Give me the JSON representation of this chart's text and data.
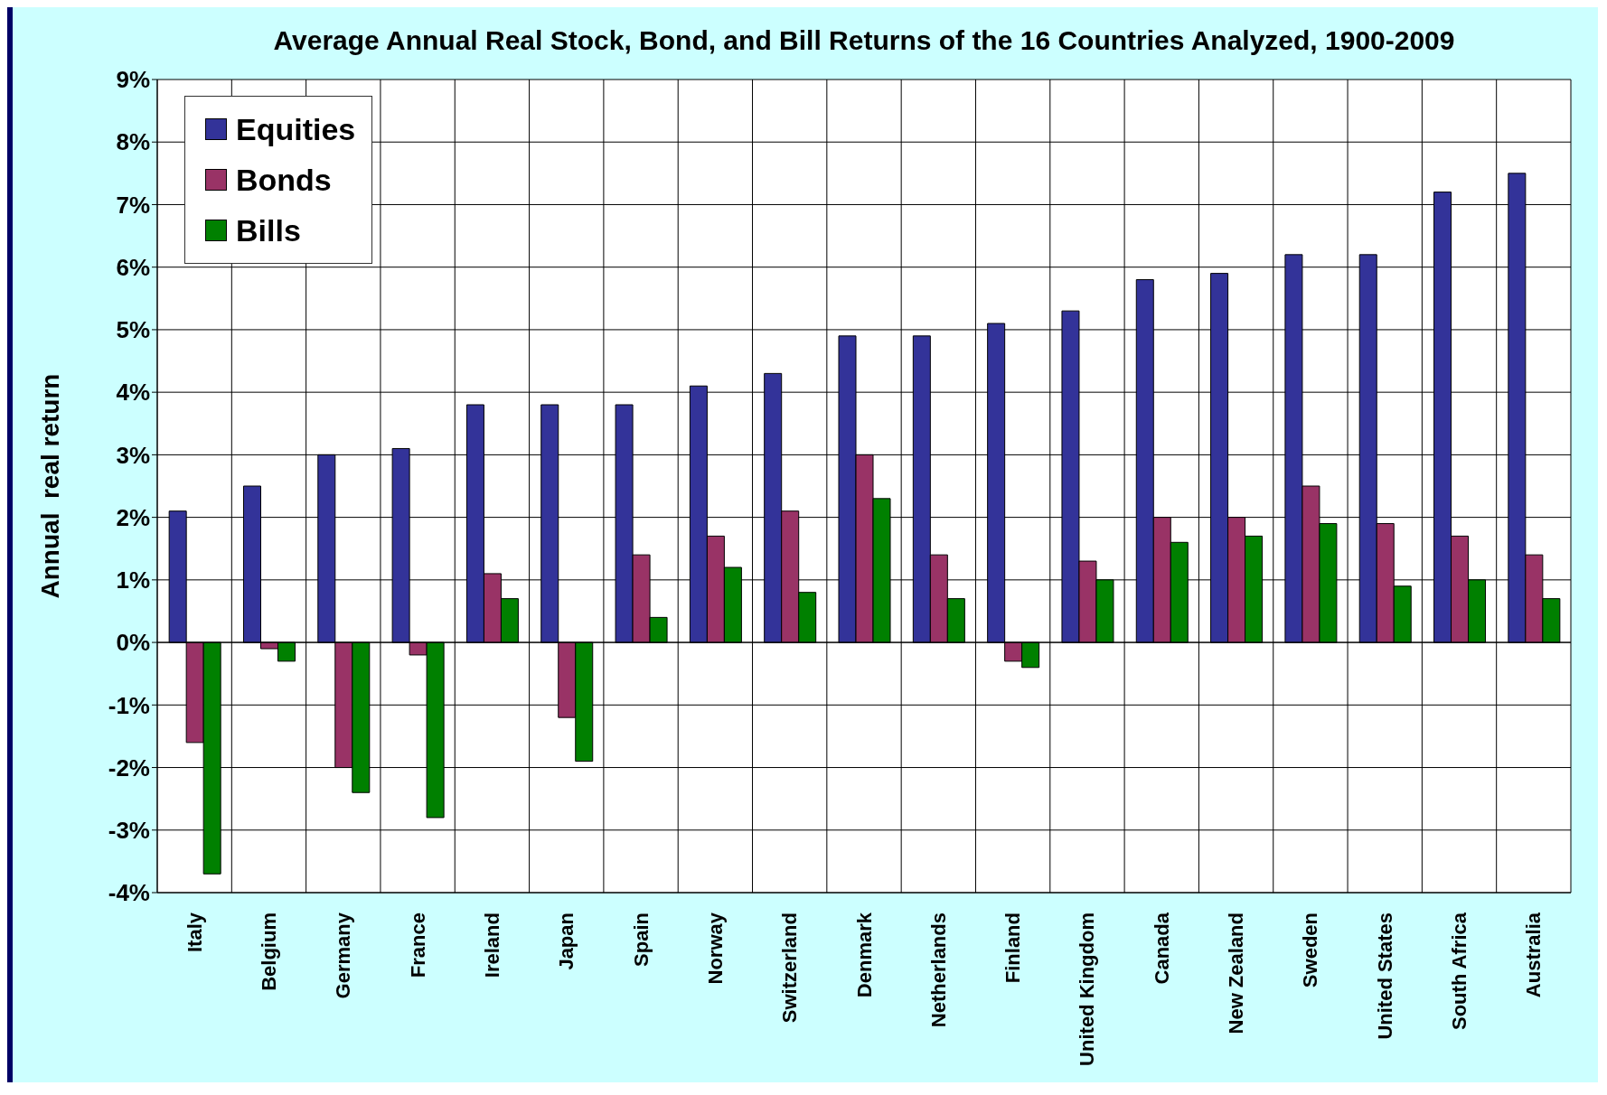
{
  "chart_data": {
    "type": "bar",
    "title": "Average Annual Real Stock, Bond, and Bill Returns of the 16 Countries Analyzed, 1900-2009",
    "ylabel": "Annual  real return",
    "categories": [
      "Italy",
      "Belgium",
      "Germany",
      "France",
      "Ireland",
      "Japan",
      "Spain",
      "Norway",
      "Switzerland",
      "Denmark",
      "Netherlands",
      "Finland",
      "United Kingdom",
      "Canada",
      "New Zealand",
      "Sweden",
      "United States",
      "South Africa",
      "Australia"
    ],
    "series": [
      {
        "name": "Equities",
        "color": "#333399",
        "values": [
          2.1,
          2.5,
          3.0,
          3.1,
          3.8,
          3.8,
          3.8,
          4.1,
          4.3,
          4.9,
          4.9,
          5.1,
          5.3,
          5.8,
          5.9,
          6.2,
          6.2,
          7.2,
          7.5
        ]
      },
      {
        "name": "Bonds",
        "color": "#993366",
        "values": [
          -1.6,
          -0.1,
          -2.0,
          -0.2,
          1.1,
          -1.2,
          1.4,
          1.7,
          2.1,
          3.0,
          1.4,
          -0.3,
          1.3,
          2.0,
          2.0,
          2.5,
          1.9,
          1.7,
          1.4
        ]
      },
      {
        "name": "Bills",
        "color": "#008000",
        "values": [
          -3.7,
          -0.3,
          -2.4,
          -2.8,
          0.7,
          -1.9,
          0.4,
          1.2,
          0.8,
          2.3,
          0.7,
          -0.4,
          1.0,
          1.6,
          1.7,
          1.9,
          0.9,
          1.0,
          0.7
        ]
      }
    ],
    "ylim": [
      -4,
      9
    ],
    "yticks": [
      {
        "value": -4,
        "label": "-4%"
      },
      {
        "value": -3,
        "label": "-3%"
      },
      {
        "value": -2,
        "label": "-2%"
      },
      {
        "value": -1,
        "label": "-1%"
      },
      {
        "value": 0,
        "label": "0%"
      },
      {
        "value": 1,
        "label": "1%"
      },
      {
        "value": 2,
        "label": "2%"
      },
      {
        "value": 3,
        "label": "3%"
      },
      {
        "value": 4,
        "label": "4%"
      },
      {
        "value": 5,
        "label": "5%"
      },
      {
        "value": 6,
        "label": "6%"
      },
      {
        "value": 7,
        "label": "7%"
      },
      {
        "value": 8,
        "label": "8%"
      },
      {
        "value": 9,
        "label": "9%"
      }
    ],
    "grid": true,
    "legend": "top left"
  }
}
